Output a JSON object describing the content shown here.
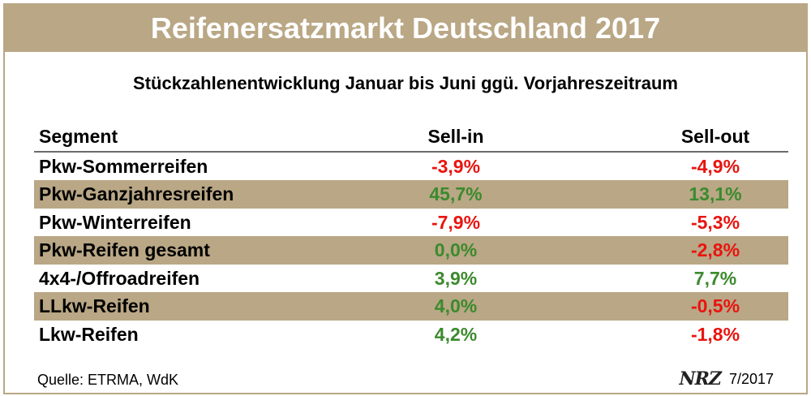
{
  "chart_data": {
    "type": "table",
    "title": "Reifenersatzmarkt Deutschland 2017",
    "subtitle": "Stückzahlenentwicklung Januar bis Juni ggü. Vorjahreszeitraum",
    "columns": [
      "Segment",
      "Sell-in",
      "Sell-out"
    ],
    "rows": [
      {
        "segment": "Pkw-Sommerreifen",
        "sell_in": "-3,9%",
        "sell_out": "-4,9%"
      },
      {
        "segment": "Pkw-Ganzjahresreifen",
        "sell_in": "45,7%",
        "sell_out": "13,1%"
      },
      {
        "segment": "Pkw-Winterreifen",
        "sell_in": "-7,9%",
        "sell_out": "-5,3%"
      },
      {
        "segment": "Pkw-Reifen gesamt",
        "sell_in": "0,0%",
        "sell_out": "-2,8%"
      },
      {
        "segment": "4x4-/Offroadreifen",
        "sell_in": "3,9%",
        "sell_out": "7,7%"
      },
      {
        "segment": "LLkw-Reifen",
        "sell_in": "4,0%",
        "sell_out": "-0,5%"
      },
      {
        "segment": "Lkw-Reifen",
        "sell_in": "4,2%",
        "sell_out": "-1,8%"
      }
    ],
    "colors": {
      "positive": "#3c8a2e",
      "negative": "#e8140f",
      "band": "#b9a785"
    }
  },
  "footer": {
    "source": "Quelle: ETRMA, WdK",
    "logo": "NRZ",
    "date": "7/2017"
  }
}
